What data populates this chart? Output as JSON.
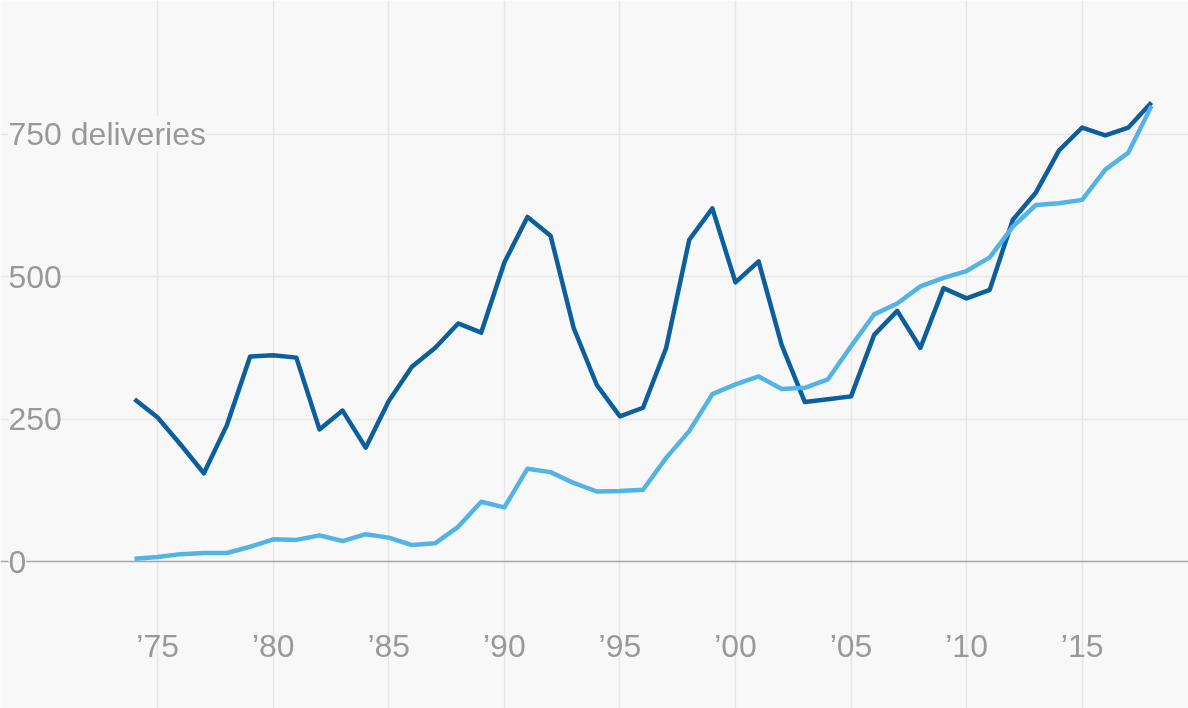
{
  "chart_data": {
    "type": "line",
    "x": [
      1974,
      1975,
      1976,
      1977,
      1978,
      1979,
      1980,
      1981,
      1982,
      1983,
      1984,
      1985,
      1986,
      1987,
      1988,
      1989,
      1990,
      1991,
      1992,
      1993,
      1994,
      1995,
      1996,
      1997,
      1998,
      1999,
      2000,
      2001,
      2002,
      2003,
      2004,
      2005,
      2006,
      2007,
      2008,
      2009,
      2010,
      2011,
      2012,
      2013,
      2014,
      2015,
      2016,
      2017,
      2018
    ],
    "series": [
      {
        "color": "#0b5f9d",
        "values": [
          285,
          253,
          205,
          155,
          240,
          360,
          362,
          358,
          232,
          265,
          200,
          282,
          342,
          375,
          418,
          402,
          525,
          605,
          572,
          410,
          310,
          255,
          270,
          375,
          565,
          620,
          490,
          527,
          380,
          280,
          285,
          290,
          398,
          440,
          375,
          480,
          462,
          477,
          600,
          648,
          722,
          762,
          748,
          762,
          806
        ]
      },
      {
        "color": "#51b3e6",
        "values": [
          5,
          8,
          13,
          15,
          15,
          26,
          39,
          38,
          46,
          36,
          48,
          42,
          29,
          32,
          61,
          105,
          95,
          163,
          157,
          138,
          123,
          124,
          126,
          182,
          229,
          294,
          311,
          325,
          303,
          305,
          320,
          378,
          434,
          453,
          483,
          498,
          510,
          534,
          588,
          626,
          629,
          635,
          688,
          718,
          800
        ]
      }
    ],
    "xlim": [
      1968.2,
      2019.6
    ],
    "ylim": [
      -258,
      985
    ],
    "xticks": [
      {
        "value": 1975,
        "label": "’75"
      },
      {
        "value": 1980,
        "label": "’80"
      },
      {
        "value": 1985,
        "label": "’85"
      },
      {
        "value": 1990,
        "label": "’90"
      },
      {
        "value": 1995,
        "label": "’95"
      },
      {
        "value": 2000,
        "label": "’00"
      },
      {
        "value": 2005,
        "label": "’05"
      },
      {
        "value": 2010,
        "label": "’10"
      },
      {
        "value": 2015,
        "label": "’15"
      }
    ],
    "yticks": [
      0,
      250,
      500,
      {
        "value": 750,
        "label": "750 deliveries"
      }
    ],
    "ref_lines": [
      {
        "axis": "y",
        "value": 0,
        "color": "#a6a6a6"
      }
    ],
    "grid": true,
    "marker": "none",
    "line_style": "solid"
  }
}
